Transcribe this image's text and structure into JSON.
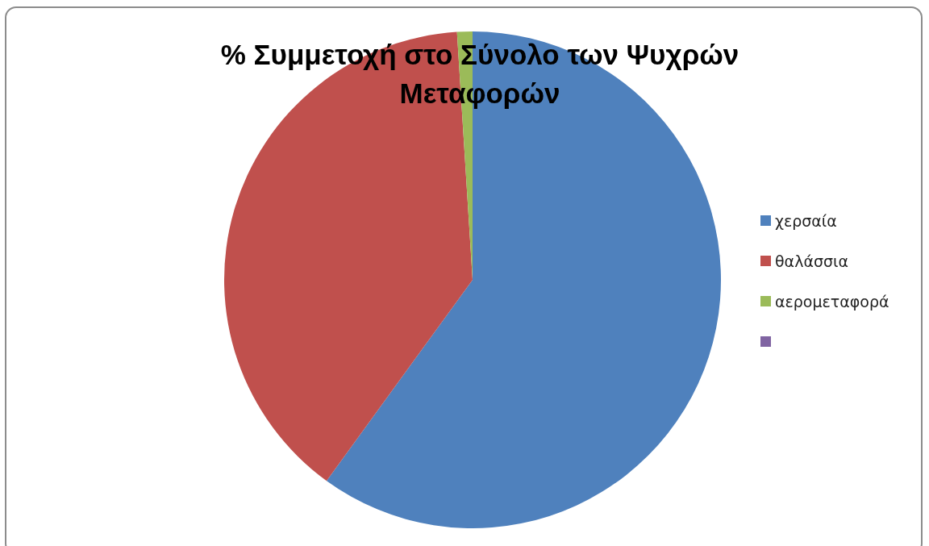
{
  "chart_data": {
    "type": "pie",
    "title": "% Συμμετοχή στο Σύνολο των Ψυχρών Μεταφορών",
    "categories": [
      "χερσαία",
      "θαλάσσια",
      "αερομεταφορά",
      null
    ],
    "values": [
      60,
      39,
      1,
      0
    ],
    "colors": [
      "#4f81bd",
      "#c0504d",
      "#9bbb59",
      "#8064a2"
    ],
    "legend": "right"
  }
}
